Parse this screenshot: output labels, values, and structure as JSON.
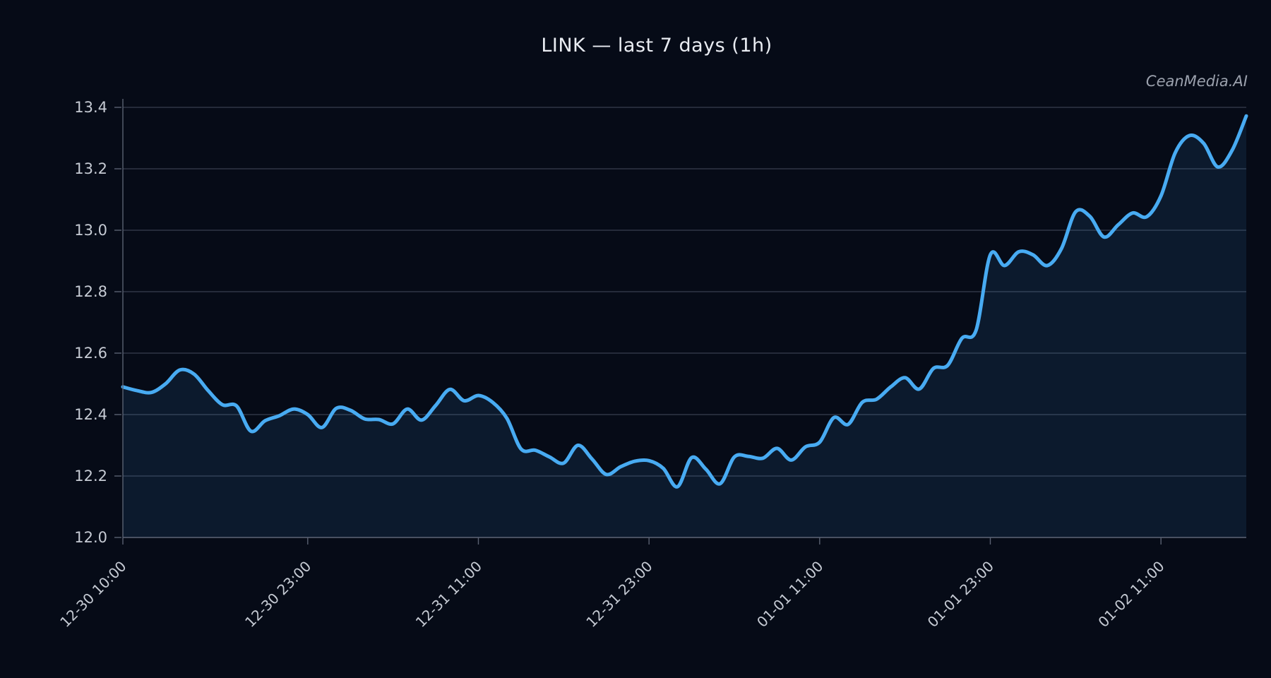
{
  "title": "LINK — last 7 days (1h)",
  "watermark": "CeanMedia.AI",
  "chart_data": {
    "type": "area",
    "symbol": "LINK",
    "interval": "1h",
    "title": "LINK — last 7 days (1h)",
    "xlabel": "",
    "ylabel": "",
    "grid": true,
    "legend": "none",
    "ylim": [
      12.0,
      13.4
    ],
    "y_tick_labels": [
      "12.0",
      "12.2",
      "12.4",
      "12.6",
      "12.8",
      "13.0",
      "13.2",
      "13.4"
    ],
    "x_start": "12-30 10:00",
    "x_unit_hours": 1,
    "x_hours_span": 79,
    "x_tick_hours": [
      0,
      13,
      25,
      37,
      49,
      61,
      73
    ],
    "x_tick_labels": [
      "12-30 10:00",
      "12-30 23:00",
      "12-31 11:00",
      "12-31 23:00",
      "01-01 11:00",
      "01-01 23:00",
      "01-02 11:00"
    ],
    "values": [
      12.49,
      12.478,
      12.472,
      12.5,
      12.545,
      12.532,
      12.478,
      12.432,
      12.428,
      12.346,
      12.38,
      12.396,
      12.418,
      12.4,
      12.358,
      12.42,
      12.414,
      12.386,
      12.384,
      12.37,
      12.418,
      12.382,
      12.43,
      12.482,
      12.445,
      12.462,
      12.44,
      12.388,
      12.288,
      12.284,
      12.262,
      12.242,
      12.3,
      12.255,
      12.205,
      12.23,
      12.248,
      12.25,
      12.225,
      12.165,
      12.26,
      12.222,
      12.175,
      12.262,
      12.264,
      12.258,
      12.29,
      12.252,
      12.295,
      12.31,
      12.39,
      12.368,
      12.44,
      12.45,
      12.49,
      12.52,
      12.483,
      12.55,
      12.56,
      12.648,
      12.675,
      12.92,
      12.885,
      12.93,
      12.92,
      12.885,
      12.94,
      13.06,
      13.045,
      12.978,
      13.018,
      13.056,
      13.044,
      13.112,
      13.252,
      13.308,
      13.283,
      13.206,
      13.26,
      13.372
    ],
    "colors": {
      "background": "#060b17",
      "line": "#48abf2",
      "fill": "rgba(72, 171, 242, 0.10)",
      "grid": "#41475a",
      "spine": "#5a6172",
      "tick_label": "#c6cbd4",
      "title": "#e9ecf2",
      "watermark": "#9ba1ad"
    }
  }
}
